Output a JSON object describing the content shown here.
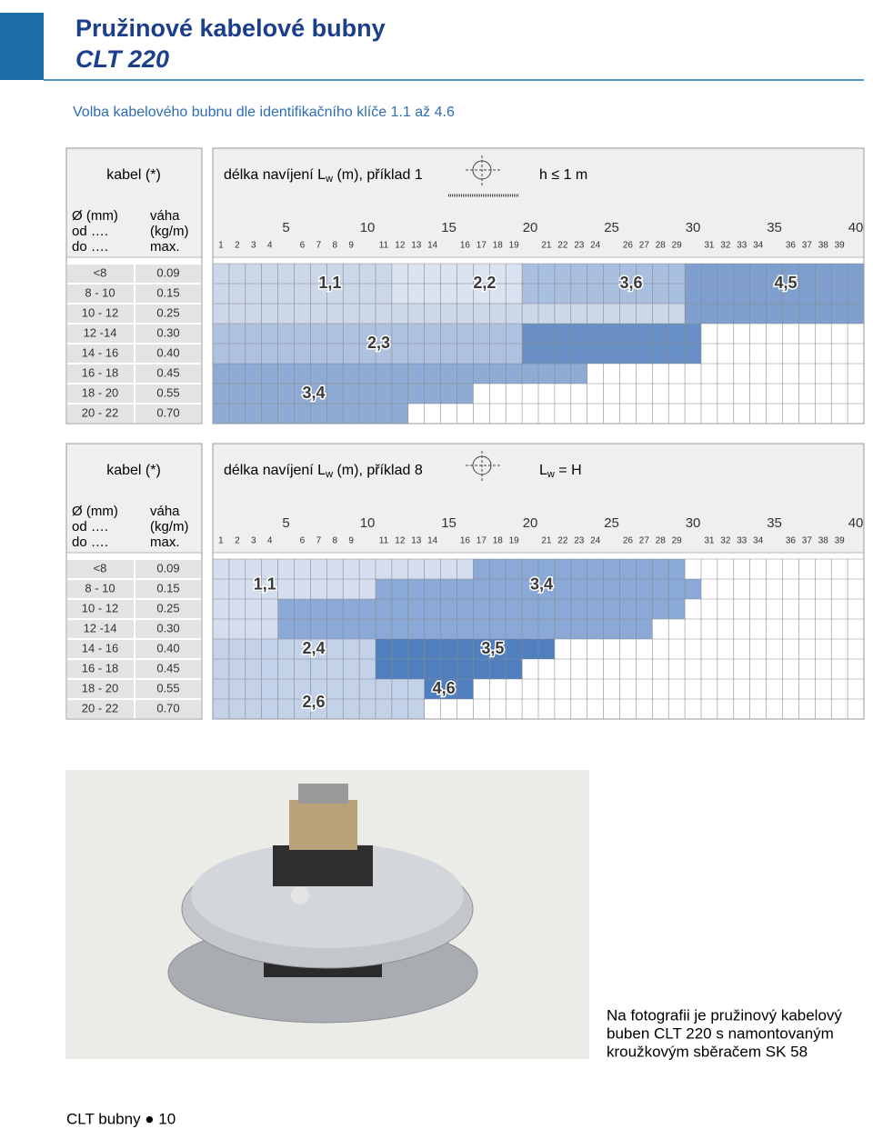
{
  "header": {
    "title": "Pružinové kabelové bubny",
    "subtitle": "CLT 220"
  },
  "intro": "Volba kabelového bubnu dle identifikačního klíče 1.1 až 4.6",
  "scale": {
    "major": [
      5,
      10,
      15,
      20,
      25,
      30,
      35,
      40
    ],
    "minor": [
      1,
      2,
      3,
      4,
      6,
      7,
      8,
      9,
      11,
      12,
      13,
      14,
      16,
      17,
      18,
      19,
      21,
      22,
      23,
      24,
      26,
      27,
      28,
      29,
      31,
      32,
      33,
      34,
      36,
      37,
      38,
      39
    ]
  },
  "tables": [
    {
      "cable_head": "kabel (*)",
      "length_head": {
        "pre": "délka navíjení L",
        "sub": "w",
        "post": " (m), příklad 1"
      },
      "condition": {
        "pre": "h ≤ 1 m"
      },
      "diameter_head": [
        "Ø (mm)",
        "od ….",
        "do …."
      ],
      "weight_head": [
        "váha",
        "(kg/m)",
        "max."
      ],
      "rows": [
        {
          "cable": "<8",
          "weight": "0.09",
          "segments": [
            {
              "to": 11,
              "color": "#ccd7ea"
            },
            {
              "to": 19,
              "color": "#dbe3f0"
            },
            {
              "to": 29,
              "color": "#a9bfdf"
            },
            {
              "to": 40,
              "color": "#7f9fcf"
            }
          ]
        },
        {
          "cable": "8 - 10",
          "weight": "0.15",
          "segments": [
            {
              "to": 11,
              "color": "#ccd7ea"
            },
            {
              "to": 19,
              "color": "#dbe3f0"
            },
            {
              "to": 29,
              "color": "#a9bfdf"
            },
            {
              "to": 40,
              "color": "#7f9fcf"
            }
          ]
        },
        {
          "cable": "10 - 12",
          "weight": "0.25",
          "segments": [
            {
              "to": 29,
              "color": "#ccd7ea"
            },
            {
              "to": 40,
              "color": "#7f9fcf"
            }
          ]
        },
        {
          "cable": "12 -14",
          "weight": "0.30",
          "segments": [
            {
              "to": 19,
              "color": "#aec2e0"
            },
            {
              "to": 30,
              "color": "#6990c6"
            }
          ]
        },
        {
          "cable": "14 - 16",
          "weight": "0.40",
          "segments": [
            {
              "to": 19,
              "color": "#aec2e0"
            },
            {
              "to": 30,
              "color": "#6990c6"
            }
          ]
        },
        {
          "cable": "16 - 18",
          "weight": "0.45",
          "segments": [
            {
              "to": 23,
              "color": "#8eabd6"
            }
          ]
        },
        {
          "cable": "18 - 20",
          "weight": "0.55",
          "segments": [
            {
              "to": 16,
              "color": "#8eabd6"
            }
          ]
        },
        {
          "cable": "20 - 22",
          "weight": "0.70",
          "segments": [
            {
              "to": 12,
              "color": "#8eabd6"
            }
          ]
        }
      ],
      "labels": [
        "1,1",
        "2,2",
        "3,6",
        "4,5",
        "2,3",
        "3,4"
      ]
    },
    {
      "cable_head": "kabel (*)",
      "length_head": {
        "pre": "délka navíjení L",
        "sub": "w",
        "post": " (m), příklad 8"
      },
      "condition": {
        "pre": "L",
        "sub": "w",
        "post": " = H"
      },
      "diameter_head": [
        "Ø (mm)",
        "od ….",
        "do …."
      ],
      "weight_head": [
        "váha",
        "(kg/m)",
        "max."
      ],
      "rows": [
        {
          "cable": "<8",
          "weight": "0.09",
          "segments": [
            {
              "to": 16,
              "color": "#d4deee"
            },
            {
              "to": 29,
              "color": "#8aa9d6"
            }
          ]
        },
        {
          "cable": "8 - 10",
          "weight": "0.15",
          "segments": [
            {
              "to": 10,
              "color": "#d4deee"
            },
            {
              "to": 30,
              "color": "#8aa9d6"
            }
          ]
        },
        {
          "cable": "10 - 12",
          "weight": "0.25",
          "segments": [
            {
              "to": 4,
              "color": "#d4deee"
            },
            {
              "to": 29,
              "color": "#8aa9d6"
            }
          ]
        },
        {
          "cable": "12 -14",
          "weight": "0.30",
          "segments": [
            {
              "to": 4,
              "color": "#d4deee"
            },
            {
              "to": 27,
              "color": "#8aa9d6"
            }
          ]
        },
        {
          "cable": "14 - 16",
          "weight": "0.40",
          "segments": [
            {
              "to": 10,
              "color": "#c3d1e9"
            },
            {
              "to": 21,
              "color": "#4f7fbf"
            }
          ]
        },
        {
          "cable": "16 - 18",
          "weight": "0.45",
          "segments": [
            {
              "to": 10,
              "color": "#c3d1e9"
            },
            {
              "to": 19,
              "color": "#4f7fbf"
            }
          ]
        },
        {
          "cable": "18 - 20",
          "weight": "0.55",
          "segments": [
            {
              "to": 13,
              "color": "#c3d1e9"
            },
            {
              "to": 16,
              "color": "#4f7fbf"
            }
          ]
        },
        {
          "cable": "20 - 22",
          "weight": "0.70",
          "segments": [
            {
              "to": 13,
              "color": "#c3d1e9"
            }
          ]
        }
      ],
      "labels": [
        "1,1",
        "3,4",
        "2,4",
        "3,5",
        "4,6",
        "2,6"
      ]
    }
  ],
  "caption": [
    "Na fotografii je pružinový kabelový",
    "buben CLT 220 s namontovaným",
    "kroužkovým sběračem SK 58"
  ],
  "footer": "CLT bubny ● 10"
}
